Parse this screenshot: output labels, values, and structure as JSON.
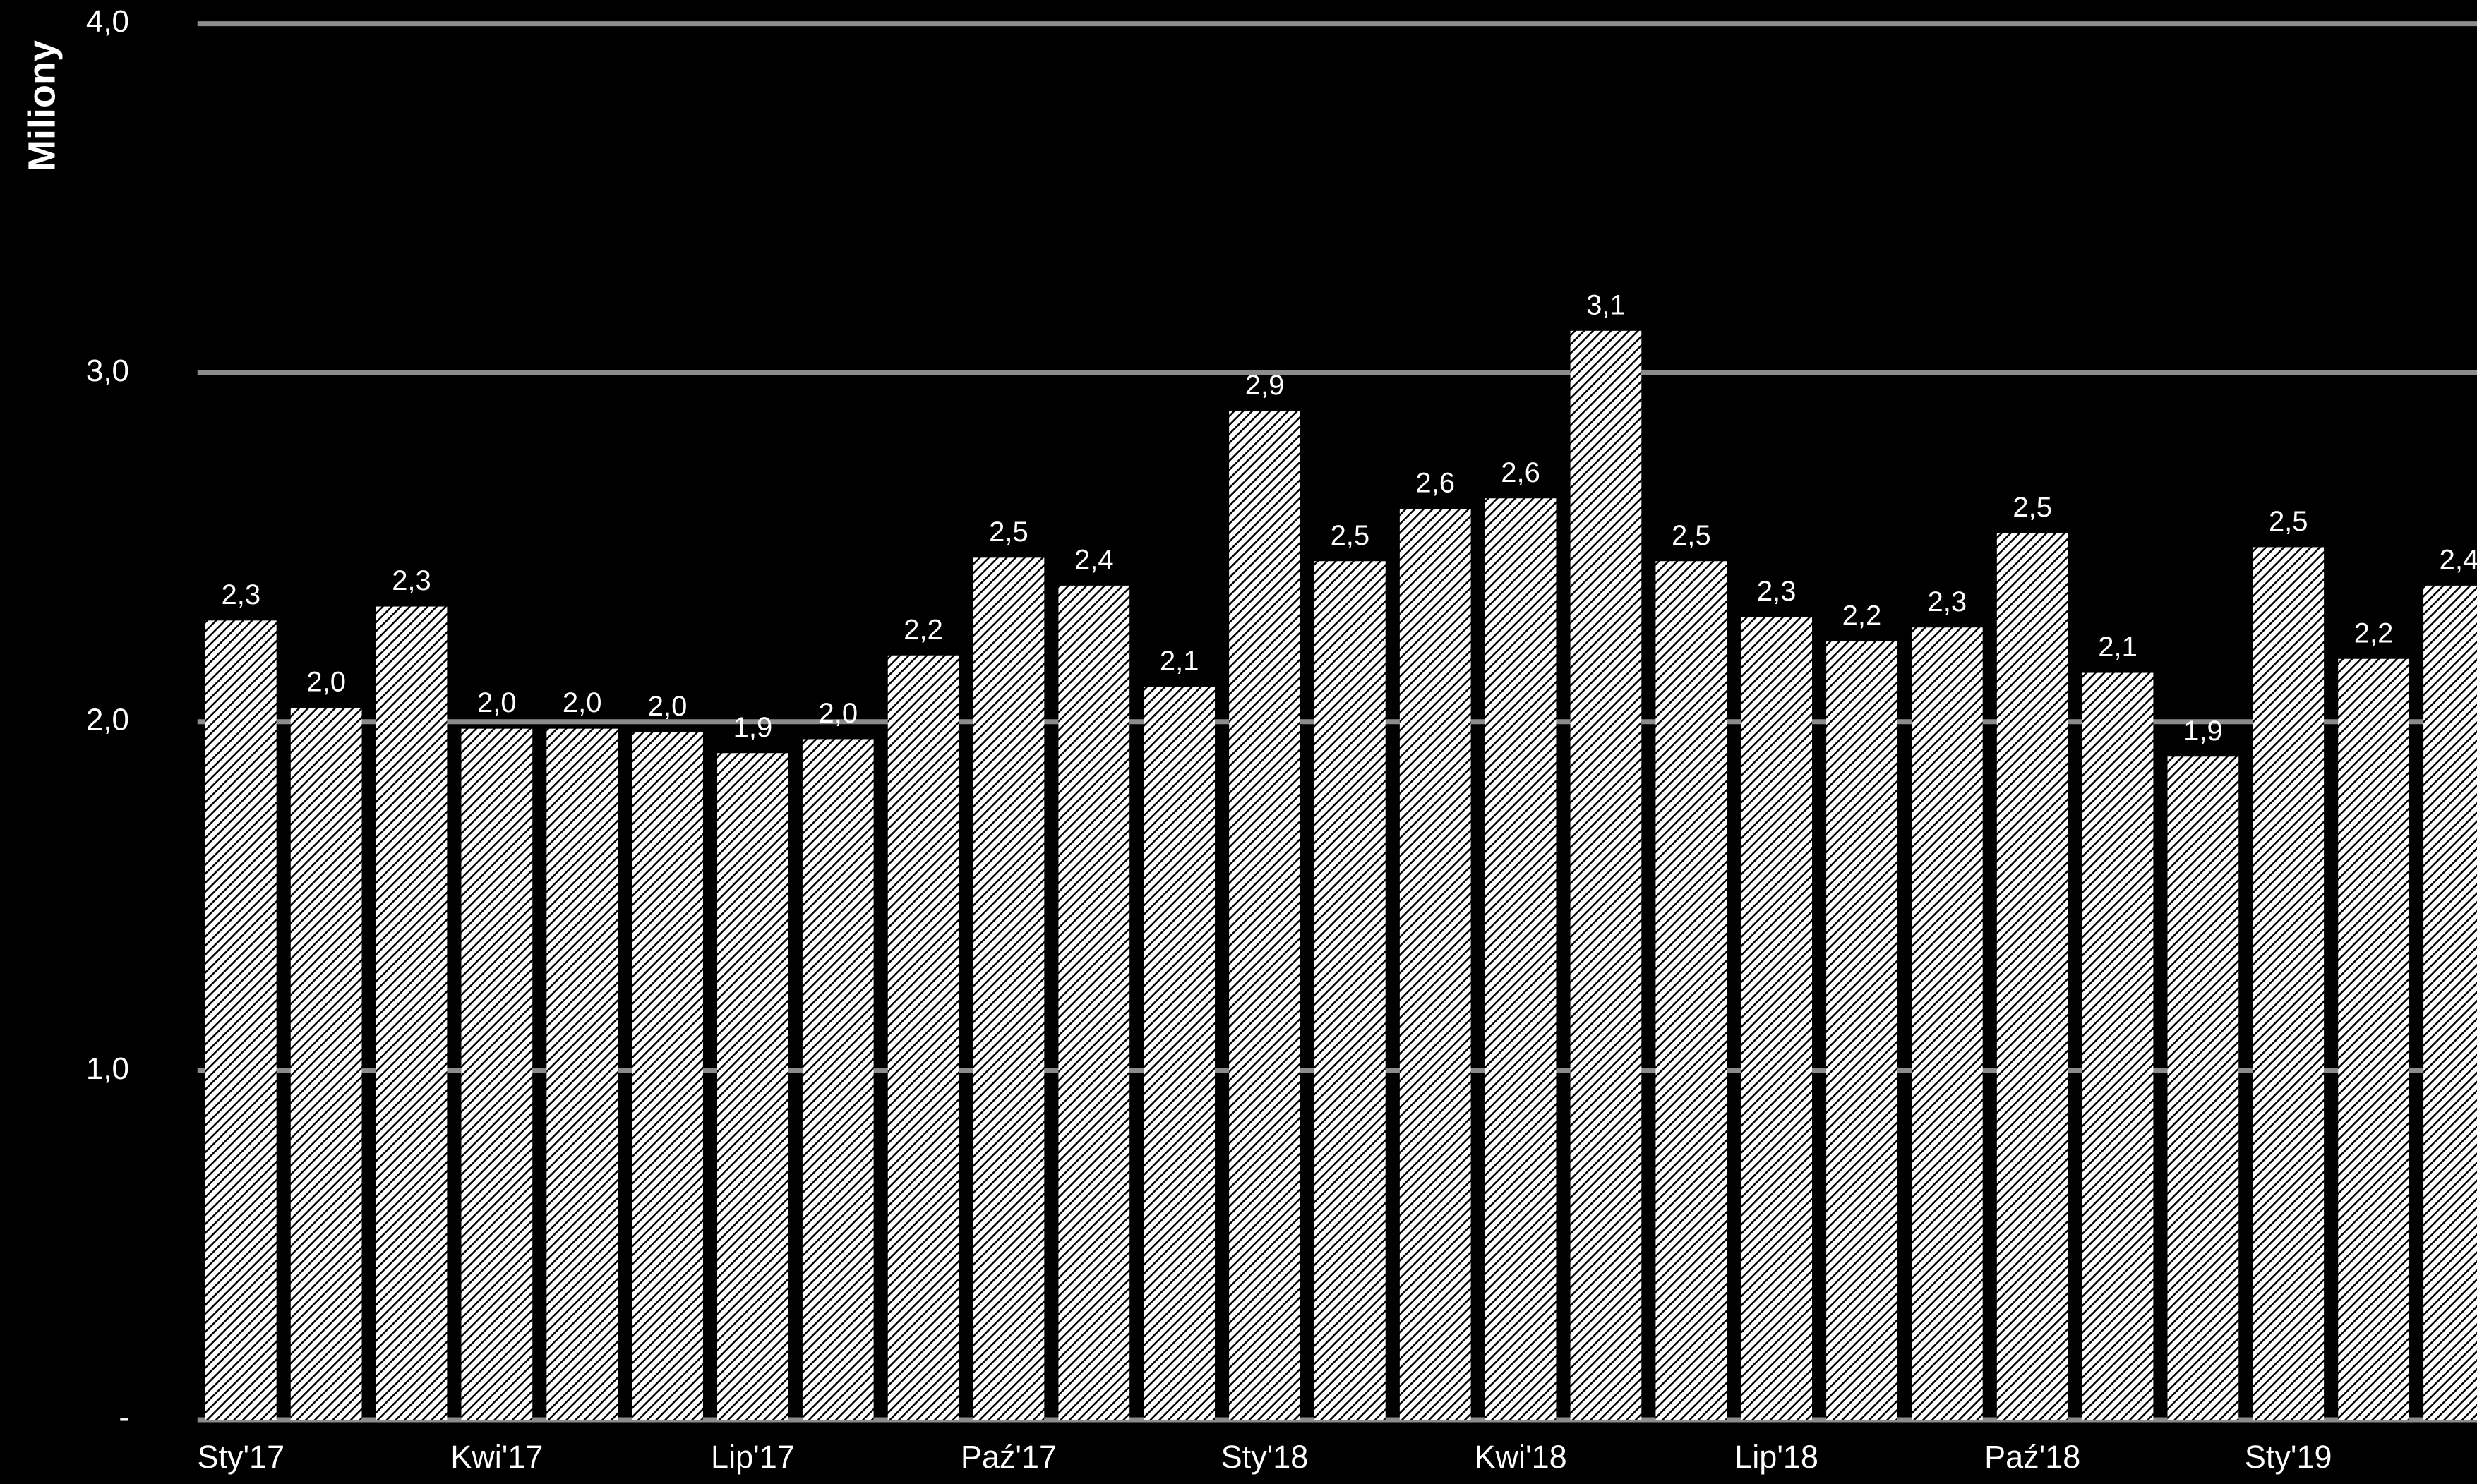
{
  "chart_data": {
    "type": "bar",
    "y_axis_label": "Miliony",
    "categories": [
      "Sty'17",
      null,
      null,
      "Kwi'17",
      null,
      null,
      "Lip'17",
      null,
      null,
      "Paź'17",
      null,
      null,
      "Sty'18",
      null,
      null,
      "Kwi'18",
      null,
      null,
      "Lip'18",
      null,
      null,
      "Paź'18",
      null,
      null,
      "Sty'19",
      null,
      null
    ],
    "values": [
      2.29,
      2.04,
      2.33,
      1.98,
      1.98,
      1.97,
      1.91,
      1.95,
      2.19,
      2.47,
      2.39,
      2.1,
      2.89,
      2.46,
      2.61,
      2.64,
      3.12,
      2.46,
      2.3,
      2.23,
      2.27,
      2.54,
      2.14,
      1.9,
      2.5,
      2.18,
      2.39
    ],
    "value_labels": [
      "2,3",
      "2,0",
      "2,3",
      "2,0",
      "2,0",
      "2,0",
      "1,9",
      "2,0",
      "2,2",
      "2,5",
      "2,4",
      "2,1",
      "2,9",
      "2,5",
      "2,6",
      "2,6",
      "3,1",
      "2,5",
      "2,3",
      "2,2",
      "2,3",
      "2,5",
      "2,1",
      "1,9",
      "2,5",
      "2,2",
      "2,4"
    ],
    "color": "#ffffff",
    "grid_color": "#8c8c8c",
    "ylim": [
      0,
      4
    ],
    "yticks": [
      {
        "value": 0,
        "label": "-"
      },
      {
        "value": 1,
        "label": "1,0"
      },
      {
        "value": 2,
        "label": "2,0"
      },
      {
        "value": 3,
        "label": "3,0"
      },
      {
        "value": 4,
        "label": "4,0"
      }
    ],
    "grid": true
  }
}
